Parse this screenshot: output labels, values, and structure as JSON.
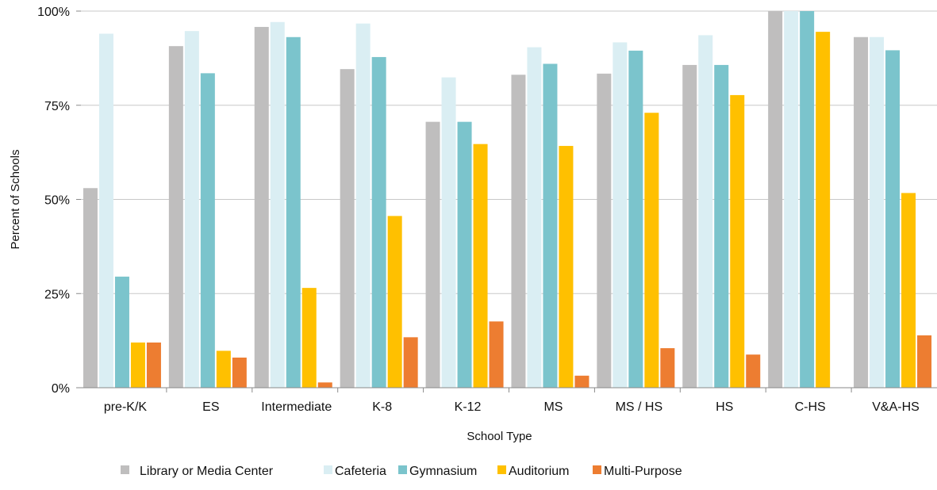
{
  "chart_data": {
    "type": "bar",
    "xlabel": "School Type",
    "ylabel": "Percent of Schools",
    "ylim": [
      0,
      100
    ],
    "yticks": [
      0,
      25,
      50,
      75,
      100
    ],
    "ytick_labels": [
      "0%",
      "25%",
      "50%",
      "75%",
      "100%"
    ],
    "grid": "horizontal",
    "legend_position": "bottom",
    "categories": [
      "pre-K/K",
      "ES",
      "Intermediate",
      "K-8",
      "K-12",
      "MS",
      "MS / HS",
      "HS",
      "C-HS",
      "V&A-HS"
    ],
    "series": [
      {
        "name": "Library or Media Center",
        "color": "#bfbebe",
        "values": [
          53,
          90.7,
          95.8,
          84.6,
          70.6,
          83.1,
          83.4,
          85.7,
          100,
          93.1
        ]
      },
      {
        "name": "Cafeteria",
        "color": "#daeef3",
        "values": [
          94,
          94.7,
          97.1,
          96.7,
          82.4,
          90.4,
          91.7,
          93.6,
          100,
          93.1
        ]
      },
      {
        "name": "Gymnasium",
        "color": "#7bc4cc",
        "values": [
          29.5,
          83.5,
          93.1,
          87.8,
          70.6,
          86,
          89.5,
          85.7,
          100,
          89.6
        ]
      },
      {
        "name": "Auditorium",
        "color": "#ffc000",
        "values": [
          12,
          9.8,
          26.5,
          45.6,
          64.7,
          64.2,
          73,
          77.7,
          94.5,
          51.7
        ]
      },
      {
        "name": "Multi-Purpose",
        "color": "#ed7d31",
        "values": [
          12,
          8,
          1.4,
          13.4,
          17.6,
          3.2,
          10.5,
          8.8,
          0,
          13.9
        ]
      }
    ]
  }
}
